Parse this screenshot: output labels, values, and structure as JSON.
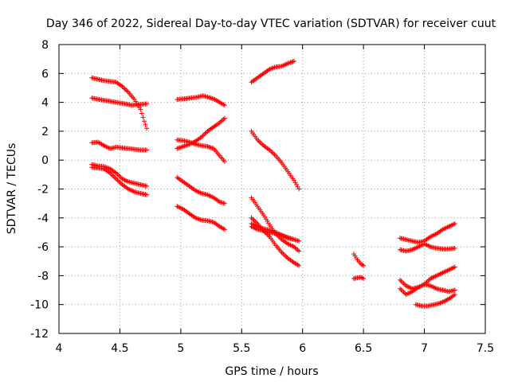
{
  "chart_data": {
    "type": "scatter",
    "title": "Day 346 of 2022, Sidereal Day-to-day VTEC variation (SDTVAR) for receiver cuut",
    "xlabel": "GPS time / hours",
    "ylabel": "SDTVAR / TECUs",
    "xlim": [
      4,
      7.5
    ],
    "ylim": [
      -12,
      8
    ],
    "xticks": [
      4,
      4.5,
      5,
      5.5,
      6,
      6.5,
      7,
      7.5
    ],
    "yticks": [
      -12,
      -10,
      -8,
      -6,
      -4,
      -2,
      0,
      2,
      4,
      6,
      8
    ],
    "grid": true,
    "marker": "+",
    "color": "#ff0000",
    "series": [
      {
        "name": "t1",
        "points": [
          [
            4.27,
            5.7
          ],
          [
            4.32,
            5.6
          ],
          [
            4.37,
            5.5
          ],
          [
            4.42,
            5.45
          ],
          [
            4.47,
            5.4
          ],
          [
            4.52,
            5.1
          ],
          [
            4.57,
            4.7
          ],
          [
            4.62,
            4.2
          ],
          [
            4.67,
            3.5
          ],
          [
            4.7,
            2.7
          ],
          [
            4.72,
            2.2
          ]
        ]
      },
      {
        "name": "t2",
        "points": [
          [
            4.27,
            4.3
          ],
          [
            4.33,
            4.2
          ],
          [
            4.4,
            4.1
          ],
          [
            4.47,
            4.0
          ],
          [
            4.54,
            3.9
          ],
          [
            4.6,
            3.8
          ],
          [
            4.66,
            3.85
          ],
          [
            4.72,
            3.9
          ]
        ]
      },
      {
        "name": "t3",
        "points": [
          [
            4.27,
            1.2
          ],
          [
            4.32,
            1.25
          ],
          [
            4.37,
            1.0
          ],
          [
            4.42,
            0.8
          ],
          [
            4.47,
            0.9
          ],
          [
            4.52,
            0.85
          ],
          [
            4.57,
            0.8
          ],
          [
            4.62,
            0.75
          ],
          [
            4.67,
            0.7
          ],
          [
            4.72,
            0.7
          ]
        ]
      },
      {
        "name": "t4",
        "points": [
          [
            4.27,
            -0.3
          ],
          [
            4.32,
            -0.4
          ],
          [
            4.37,
            -0.45
          ],
          [
            4.42,
            -0.6
          ],
          [
            4.47,
            -0.9
          ],
          [
            4.52,
            -1.3
          ],
          [
            4.57,
            -1.5
          ],
          [
            4.62,
            -1.6
          ],
          [
            4.67,
            -1.7
          ],
          [
            4.72,
            -1.8
          ]
        ]
      },
      {
        "name": "t5",
        "points": [
          [
            4.27,
            -0.5
          ],
          [
            4.32,
            -0.55
          ],
          [
            4.37,
            -0.6
          ],
          [
            4.42,
            -0.9
          ],
          [
            4.47,
            -1.3
          ],
          [
            4.52,
            -1.7
          ],
          [
            4.57,
            -2.0
          ],
          [
            4.62,
            -2.2
          ],
          [
            4.67,
            -2.3
          ],
          [
            4.72,
            -2.4
          ]
        ]
      },
      {
        "name": "t6",
        "points": [
          [
            4.97,
            4.2
          ],
          [
            5.03,
            4.25
          ],
          [
            5.08,
            4.3
          ],
          [
            5.13,
            4.35
          ],
          [
            5.18,
            4.45
          ],
          [
            5.23,
            4.35
          ],
          [
            5.28,
            4.2
          ],
          [
            5.32,
            4.0
          ],
          [
            5.36,
            3.8
          ]
        ]
      },
      {
        "name": "t7",
        "points": [
          [
            4.97,
            0.8
          ],
          [
            5.02,
            0.95
          ],
          [
            5.07,
            1.1
          ],
          [
            5.12,
            1.3
          ],
          [
            5.17,
            1.6
          ],
          [
            5.22,
            2.0
          ],
          [
            5.27,
            2.3
          ],
          [
            5.32,
            2.6
          ],
          [
            5.36,
            2.9
          ]
        ]
      },
      {
        "name": "t8",
        "points": [
          [
            4.97,
            1.4
          ],
          [
            5.02,
            1.35
          ],
          [
            5.07,
            1.25
          ],
          [
            5.12,
            1.1
          ],
          [
            5.17,
            1.0
          ],
          [
            5.22,
            0.95
          ],
          [
            5.27,
            0.8
          ],
          [
            5.32,
            0.3
          ],
          [
            5.36,
            -0.1
          ]
        ]
      },
      {
        "name": "t9",
        "points": [
          [
            4.97,
            -1.2
          ],
          [
            5.02,
            -1.5
          ],
          [
            5.07,
            -1.8
          ],
          [
            5.12,
            -2.1
          ],
          [
            5.17,
            -2.3
          ],
          [
            5.22,
            -2.4
          ],
          [
            5.27,
            -2.6
          ],
          [
            5.32,
            -2.9
          ],
          [
            5.36,
            -3.0
          ]
        ]
      },
      {
        "name": "t10",
        "points": [
          [
            4.97,
            -3.2
          ],
          [
            5.02,
            -3.4
          ],
          [
            5.07,
            -3.7
          ],
          [
            5.12,
            -4.0
          ],
          [
            5.17,
            -4.15
          ],
          [
            5.22,
            -4.2
          ],
          [
            5.27,
            -4.3
          ],
          [
            5.32,
            -4.6
          ],
          [
            5.36,
            -4.8
          ]
        ]
      },
      {
        "name": "t11",
        "points": [
          [
            5.58,
            5.4
          ],
          [
            5.63,
            5.7
          ],
          [
            5.68,
            6.0
          ],
          [
            5.73,
            6.3
          ],
          [
            5.78,
            6.45
          ],
          [
            5.83,
            6.5
          ],
          [
            5.88,
            6.7
          ],
          [
            5.93,
            6.85
          ]
        ]
      },
      {
        "name": "t12",
        "points": [
          [
            5.58,
            2.0
          ],
          [
            5.63,
            1.4
          ],
          [
            5.68,
            1.0
          ],
          [
            5.73,
            0.7
          ],
          [
            5.78,
            0.3
          ],
          [
            5.83,
            -0.2
          ],
          [
            5.88,
            -0.8
          ],
          [
            5.93,
            -1.4
          ],
          [
            5.97,
            -2.0
          ]
        ]
      },
      {
        "name": "t13",
        "points": [
          [
            5.58,
            -2.6
          ],
          [
            5.63,
            -3.2
          ],
          [
            5.68,
            -3.8
          ],
          [
            5.73,
            -4.5
          ],
          [
            5.78,
            -5.1
          ],
          [
            5.83,
            -5.5
          ],
          [
            5.88,
            -5.8
          ],
          [
            5.93,
            -6.0
          ],
          [
            5.97,
            -6.3
          ]
        ]
      },
      {
        "name": "t14",
        "points": [
          [
            5.58,
            -4.0
          ],
          [
            5.63,
            -4.4
          ],
          [
            5.68,
            -4.9
          ],
          [
            5.73,
            -5.3
          ],
          [
            5.78,
            -5.9
          ],
          [
            5.83,
            -6.4
          ],
          [
            5.88,
            -6.8
          ],
          [
            5.93,
            -7.1
          ],
          [
            5.97,
            -7.3
          ]
        ]
      },
      {
        "name": "t15",
        "points": [
          [
            5.58,
            -4.4
          ],
          [
            5.63,
            -4.6
          ],
          [
            5.68,
            -4.75
          ],
          [
            5.73,
            -4.85
          ],
          [
            5.78,
            -5.0
          ],
          [
            5.83,
            -5.2
          ],
          [
            5.88,
            -5.4
          ],
          [
            5.93,
            -5.5
          ],
          [
            5.97,
            -5.6
          ]
        ]
      },
      {
        "name": "t16",
        "points": [
          [
            5.58,
            -4.6
          ],
          [
            5.63,
            -4.8
          ],
          [
            5.68,
            -4.9
          ],
          [
            5.73,
            -5.0
          ],
          [
            5.78,
            -5.1
          ],
          [
            5.83,
            -5.2
          ],
          [
            5.88,
            -5.35
          ],
          [
            5.93,
            -5.5
          ]
        ]
      },
      {
        "name": "t17",
        "points": [
          [
            6.42,
            -6.5
          ],
          [
            6.45,
            -6.9
          ],
          [
            6.48,
            -7.2
          ],
          [
            6.5,
            -7.3
          ]
        ]
      },
      {
        "name": "t18",
        "points": [
          [
            6.42,
            -8.2
          ],
          [
            6.45,
            -8.15
          ],
          [
            6.48,
            -8.1
          ],
          [
            6.5,
            -8.2
          ]
        ]
      },
      {
        "name": "t19",
        "points": [
          [
            6.8,
            -5.4
          ],
          [
            6.85,
            -5.5
          ],
          [
            6.9,
            -5.6
          ],
          [
            6.95,
            -5.7
          ],
          [
            7.0,
            -5.6
          ],
          [
            7.05,
            -5.3
          ],
          [
            7.1,
            -5.1
          ],
          [
            7.15,
            -4.8
          ],
          [
            7.2,
            -4.6
          ],
          [
            7.25,
            -4.4
          ]
        ]
      },
      {
        "name": "t20",
        "points": [
          [
            6.8,
            -6.2
          ],
          [
            6.85,
            -6.3
          ],
          [
            6.9,
            -6.2
          ],
          [
            6.95,
            -6.0
          ],
          [
            7.0,
            -5.8
          ],
          [
            7.05,
            -6.0
          ],
          [
            7.1,
            -6.1
          ],
          [
            7.15,
            -6.15
          ],
          [
            7.2,
            -6.15
          ],
          [
            7.25,
            -6.1
          ]
        ]
      },
      {
        "name": "t21",
        "points": [
          [
            6.8,
            -8.3
          ],
          [
            6.85,
            -8.7
          ],
          [
            6.9,
            -8.9
          ],
          [
            6.95,
            -8.8
          ],
          [
            7.0,
            -8.6
          ],
          [
            7.05,
            -8.2
          ],
          [
            7.1,
            -8.0
          ],
          [
            7.15,
            -7.8
          ],
          [
            7.2,
            -7.6
          ],
          [
            7.25,
            -7.4
          ]
        ]
      },
      {
        "name": "t22",
        "points": [
          [
            6.8,
            -8.9
          ],
          [
            6.85,
            -9.3
          ],
          [
            6.9,
            -9.1
          ],
          [
            6.95,
            -8.8
          ],
          [
            7.0,
            -8.6
          ],
          [
            7.05,
            -8.7
          ],
          [
            7.1,
            -8.9
          ],
          [
            7.15,
            -9.0
          ],
          [
            7.2,
            -9.1
          ],
          [
            7.25,
            -9.0
          ]
        ]
      },
      {
        "name": "t23",
        "points": [
          [
            6.93,
            -10.0
          ],
          [
            6.98,
            -10.1
          ],
          [
            7.03,
            -10.1
          ],
          [
            7.08,
            -10.0
          ],
          [
            7.13,
            -9.9
          ],
          [
            7.18,
            -9.7
          ],
          [
            7.22,
            -9.5
          ],
          [
            7.25,
            -9.3
          ]
        ]
      }
    ]
  }
}
